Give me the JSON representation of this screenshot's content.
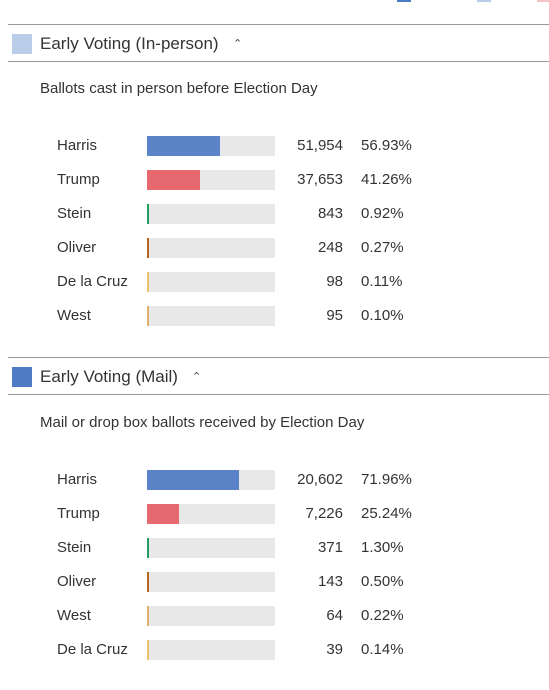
{
  "colors": {
    "harris": "#5b84c8",
    "trump": "#e5696f",
    "stein": "#1f9e5f",
    "oliver": "#b5651d",
    "delacruz": "#e8c36b",
    "west": "#e0b070",
    "inperson_swatch": "#b9cce8",
    "mail_swatch": "#4e7bc4"
  },
  "sections": [
    {
      "title": "Early Voting (In-person)",
      "chevron": "chevron-up-icon",
      "subtitle": "Ballots cast in person before Election Day",
      "rows": [
        {
          "name": "Harris",
          "votes": "51,954",
          "pct": "56.93%",
          "share": 0.5693,
          "color_key": "harris"
        },
        {
          "name": "Trump",
          "votes": "37,653",
          "pct": "41.26%",
          "share": 0.4126,
          "color_key": "trump"
        },
        {
          "name": "Stein",
          "votes": "843",
          "pct": "0.92%",
          "share": 0.0092,
          "color_key": "stein"
        },
        {
          "name": "Oliver",
          "votes": "248",
          "pct": "0.27%",
          "share": 0.0027,
          "color_key": "oliver"
        },
        {
          "name": "De la Cruz",
          "votes": "98",
          "pct": "0.11%",
          "share": 0.0011,
          "color_key": "delacruz"
        },
        {
          "name": "West",
          "votes": "95",
          "pct": "0.10%",
          "share": 0.001,
          "color_key": "west"
        }
      ]
    },
    {
      "title": "Early Voting (Mail)",
      "chevron": "chevron-up-icon",
      "subtitle": "Mail or drop box ballots received by Election Day",
      "rows": [
        {
          "name": "Harris",
          "votes": "20,602",
          "pct": "71.96%",
          "share": 0.7196,
          "color_key": "harris"
        },
        {
          "name": "Trump",
          "votes": "7,226",
          "pct": "25.24%",
          "share": 0.2524,
          "color_key": "trump"
        },
        {
          "name": "Stein",
          "votes": "371",
          "pct": "1.30%",
          "share": 0.013,
          "color_key": "stein"
        },
        {
          "name": "Oliver",
          "votes": "143",
          "pct": "0.50%",
          "share": 0.005,
          "color_key": "oliver"
        },
        {
          "name": "West",
          "votes": "64",
          "pct": "0.22%",
          "share": 0.0022,
          "color_key": "west"
        },
        {
          "name": "De la Cruz",
          "votes": "39",
          "pct": "0.14%",
          "share": 0.0014,
          "color_key": "delacruz"
        }
      ]
    }
  ]
}
